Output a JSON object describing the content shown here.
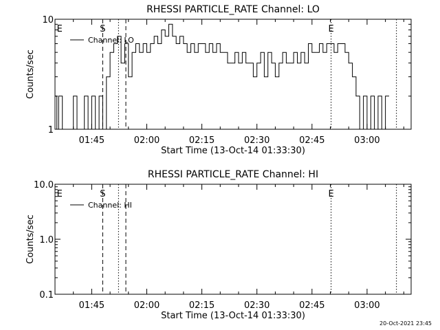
{
  "footer": {
    "timestamp": "20-Oct-2021 23:45"
  },
  "chart_data": [
    {
      "type": "line",
      "title": "RHESSI PARTICLE_RATE Channel: LO",
      "xlabel": "Start Time (13-Oct-14 01:33:30)",
      "ylabel": "Counts/sec",
      "yscale": "log",
      "xlim": [
        "01:35",
        "03:12"
      ],
      "ylim": [
        1,
        10
      ],
      "xticks": [
        "01:45",
        "02:00",
        "02:15",
        "02:30",
        "02:45",
        "03:00"
      ],
      "yticks": [
        {
          "value": 1,
          "label": "1"
        },
        {
          "value": 10,
          "label": "10"
        }
      ],
      "legend": {
        "position": "top-left",
        "entries": [
          "Channel: LO"
        ]
      },
      "markers": [
        {
          "time": "01:35.5",
          "style": "none",
          "label": "E"
        },
        {
          "time": "01:48",
          "style": "dashed",
          "label": "S"
        },
        {
          "time": "01:52.3",
          "style": "dotted",
          "label": ""
        },
        {
          "time": "01:54.3",
          "style": "dashed",
          "label": ""
        },
        {
          "time": "02:50.2",
          "style": "dotted",
          "label": "E"
        },
        {
          "time": "03:08",
          "style": "dotted",
          "label": ""
        }
      ],
      "series": [
        {
          "name": "Channel: LO",
          "x": [
            "01:35",
            "01:35.5",
            "01:36",
            "01:37",
            "01:38",
            "01:39",
            "01:40",
            "01:41",
            "01:42",
            "01:43",
            "01:44",
            "01:45",
            "01:46",
            "01:47",
            "01:48",
            "01:49",
            "01:50",
            "01:51",
            "01:52",
            "01:53",
            "01:54",
            "01:55",
            "01:56",
            "01:57",
            "01:58",
            "01:59",
            "02:00",
            "02:01",
            "02:02",
            "02:03",
            "02:04",
            "02:05",
            "02:06",
            "02:07",
            "02:08",
            "02:09",
            "02:10",
            "02:11",
            "02:12",
            "02:13",
            "02:14",
            "02:15",
            "02:16",
            "02:17",
            "02:18",
            "02:19",
            "02:20",
            "02:21",
            "02:22",
            "02:23",
            "02:24",
            "02:25",
            "02:26",
            "02:27",
            "02:28",
            "02:29",
            "02:30",
            "02:31",
            "02:32",
            "02:33",
            "02:34",
            "02:35",
            "02:36",
            "02:37",
            "02:38",
            "02:39",
            "02:40",
            "02:41",
            "02:42",
            "02:43",
            "02:44",
            "02:45",
            "02:46",
            "02:47",
            "02:48",
            "02:49",
            "02:50",
            "02:51",
            "02:52",
            "02:53",
            "02:54",
            "02:55",
            "02:56",
            "02:57",
            "02:58",
            "02:59",
            "03:00",
            "03:01",
            "03:02",
            "03:03",
            "03:04",
            "03:05"
          ],
          "values": [
            2,
            1,
            2,
            1,
            1,
            1,
            2,
            1,
            1,
            2,
            1,
            2,
            1,
            2,
            1,
            3,
            5,
            6,
            7,
            4,
            6,
            3,
            5,
            6,
            5,
            6,
            5,
            6,
            7,
            6,
            8,
            7,
            9,
            7,
            6,
            7,
            6,
            5,
            6,
            5,
            6,
            6,
            5,
            6,
            5,
            6,
            5,
            5,
            4,
            4,
            5,
            4,
            5,
            4,
            4,
            3,
            4,
            5,
            3,
            5,
            4,
            3,
            4,
            5,
            4,
            4,
            5,
            4,
            5,
            4,
            6,
            5,
            5,
            6,
            5,
            6,
            6,
            5,
            6,
            6,
            5,
            4,
            3,
            2,
            1,
            2,
            1,
            2,
            1,
            2,
            1,
            2
          ]
        }
      ]
    },
    {
      "type": "line",
      "title": "RHESSI PARTICLE_RATE Channel: HI",
      "xlabel": "Start Time (13-Oct-14 01:33:30)",
      "ylabel": "Counts/sec",
      "yscale": "log",
      "xlim": [
        "01:35",
        "03:12"
      ],
      "ylim": [
        0.1,
        10
      ],
      "xticks": [
        "01:45",
        "02:00",
        "02:15",
        "02:30",
        "02:45",
        "03:00"
      ],
      "yticks": [
        {
          "value": 10,
          "label": "10.0"
        },
        {
          "value": 1,
          "label": "1.0"
        },
        {
          "value": 0.1,
          "label": "0.1"
        }
      ],
      "legend": {
        "position": "top-left",
        "entries": [
          "Channel: HI"
        ]
      },
      "markers": [
        {
          "time": "01:35.5",
          "style": "none",
          "label": "E"
        },
        {
          "time": "01:48",
          "style": "dashed",
          "label": "S"
        },
        {
          "time": "01:52.3",
          "style": "dotted",
          "label": ""
        },
        {
          "time": "01:54.3",
          "style": "dashed",
          "label": ""
        },
        {
          "time": "02:50.2",
          "style": "dotted",
          "label": "E"
        },
        {
          "time": "03:08",
          "style": "dotted",
          "label": ""
        }
      ],
      "series": [
        {
          "name": "Channel: HI",
          "x": [],
          "values": []
        }
      ]
    }
  ]
}
